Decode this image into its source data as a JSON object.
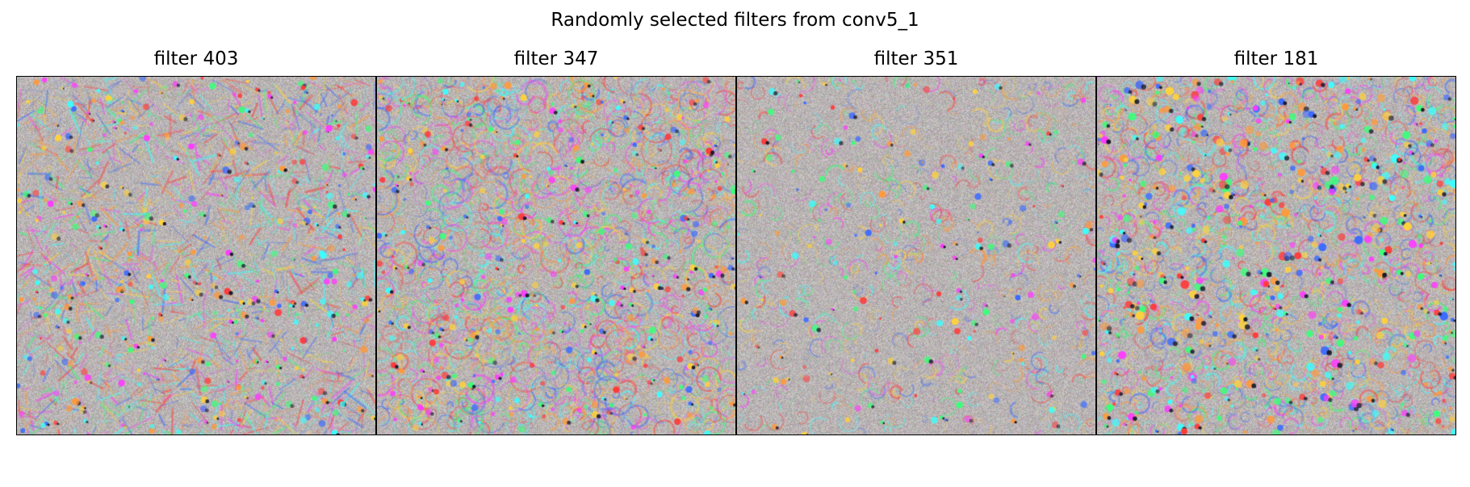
{
  "figure": {
    "title": "Randomly selected filters from conv5_1"
  },
  "panels": [
    {
      "title": "filter 403",
      "texture": "dense-lines"
    },
    {
      "title": "filter 347",
      "texture": "swirling-faces"
    },
    {
      "title": "filter 351",
      "texture": "sparse-spots"
    },
    {
      "title": "filter 181",
      "texture": "cellular-blobs"
    }
  ],
  "colors": {
    "background_gray": "#b9b4b4",
    "accents": [
      "#ff3b3b",
      "#3b6bff",
      "#ffd23b",
      "#3bff7a",
      "#ff3bff",
      "#3bffff",
      "#ff9a3b"
    ]
  }
}
